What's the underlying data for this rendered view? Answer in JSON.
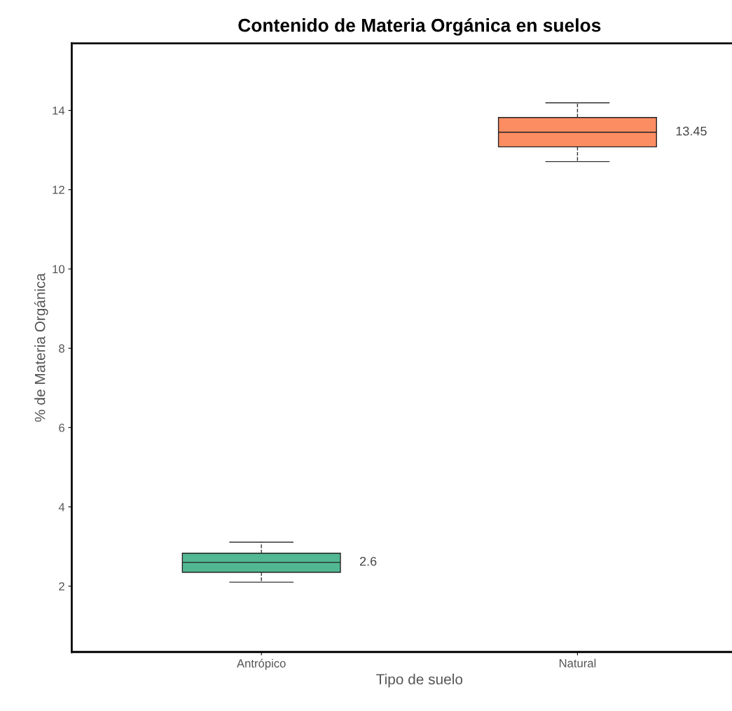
{
  "chart_data": {
    "type": "box",
    "title": "Contenido de Materia Orgánica en suelos",
    "xlabel": "Tipo de suelo",
    "ylabel": "% de Materia Orgánica",
    "categories": [
      "Antrópico",
      "Natural"
    ],
    "colors": [
      "#52b893",
      "#fc8d62"
    ],
    "boxes": [
      {
        "low": 2.1,
        "q1": 2.35,
        "median": 2.6,
        "q3": 2.83,
        "high": 3.11
      },
      {
        "low": 12.71,
        "q1": 13.08,
        "median": 13.45,
        "q3": 13.82,
        "high": 14.19
      }
    ],
    "annotations": [
      "2.6",
      "13.45"
    ],
    "ylim": [
      0.34,
      15.69
    ],
    "yticks": [
      2,
      4,
      6,
      8,
      10,
      12,
      14
    ],
    "grid": false,
    "line_style": "dashed"
  }
}
